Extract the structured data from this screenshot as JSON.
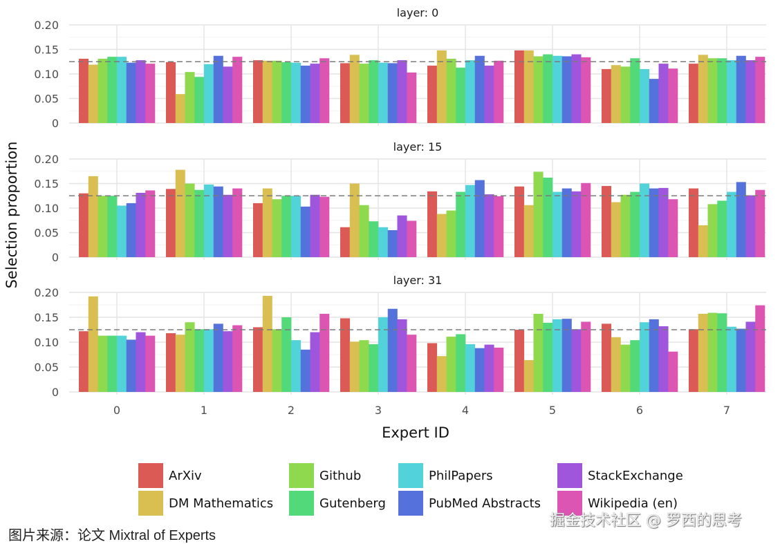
{
  "chart_data": {
    "type": "bar",
    "layout": "faceted",
    "xlabel": "Expert ID",
    "ylabel": "Selection proportion",
    "categories": [
      "0",
      "1",
      "2",
      "3",
      "4",
      "5",
      "6",
      "7"
    ],
    "ylim": [
      0,
      0.2
    ],
    "yticks": [
      "0",
      "0.05",
      "0.10",
      "0.15",
      "0.20"
    ],
    "ytick_values": [
      0,
      0.05,
      0.1,
      0.15,
      0.2
    ],
    "reference_line": 0.125,
    "grid": true,
    "legend_position": "bottom",
    "series_names": [
      "ArXiv",
      "DM Mathematics",
      "Github",
      "Gutenberg",
      "PhilPapers",
      "PubMed Abstracts",
      "StackExchange",
      "Wikipedia (en)"
    ],
    "series_colors": [
      "#dc5a55",
      "#d9bf52",
      "#8fd94f",
      "#52d97a",
      "#52d3d9",
      "#5571dc",
      "#9f55dc",
      "#dc55b3"
    ],
    "panels": [
      {
        "title": "layer: 0",
        "series": [
          {
            "name": "ArXiv",
            "values": [
              0.131,
              0.124,
              0.128,
              0.122,
              0.117,
              0.148,
              0.11,
              0.121
            ]
          },
          {
            "name": "DM Mathematics",
            "values": [
              0.119,
              0.059,
              0.127,
              0.139,
              0.148,
              0.148,
              0.118,
              0.139
            ]
          },
          {
            "name": "Github",
            "values": [
              0.131,
              0.104,
              0.127,
              0.121,
              0.131,
              0.136,
              0.115,
              0.132
            ]
          },
          {
            "name": "Gutenberg",
            "values": [
              0.135,
              0.094,
              0.124,
              0.128,
              0.113,
              0.14,
              0.132,
              0.132
            ]
          },
          {
            "name": "PhilPapers",
            "values": [
              0.135,
              0.12,
              0.123,
              0.123,
              0.128,
              0.137,
              0.11,
              0.128
            ]
          },
          {
            "name": "PubMed Abstracts",
            "values": [
              0.123,
              0.137,
              0.117,
              0.122,
              0.137,
              0.136,
              0.09,
              0.137
            ]
          },
          {
            "name": "StackExchange",
            "values": [
              0.128,
              0.115,
              0.121,
              0.128,
              0.117,
              0.14,
              0.121,
              0.128
            ]
          },
          {
            "name": "Wikipedia (en)",
            "values": [
              0.121,
              0.135,
              0.132,
              0.103,
              0.127,
              0.134,
              0.111,
              0.135
            ]
          }
        ]
      },
      {
        "title": "layer: 15",
        "series": [
          {
            "name": "ArXiv",
            "values": [
              0.13,
              0.139,
              0.11,
              0.061,
              0.134,
              0.144,
              0.145,
              0.14
            ]
          },
          {
            "name": "DM Mathematics",
            "values": [
              0.165,
              0.178,
              0.14,
              0.15,
              0.088,
              0.106,
              0.112,
              0.065
            ]
          },
          {
            "name": "Github",
            "values": [
              0.125,
              0.15,
              0.118,
              0.106,
              0.095,
              0.174,
              0.127,
              0.108
            ]
          },
          {
            "name": "Gutenberg",
            "values": [
              0.125,
              0.137,
              0.125,
              0.073,
              0.133,
              0.162,
              0.133,
              0.115
            ]
          },
          {
            "name": "PhilPapers",
            "values": [
              0.105,
              0.148,
              0.125,
              0.061,
              0.147,
              0.133,
              0.15,
              0.133
            ]
          },
          {
            "name": "PubMed Abstracts",
            "values": [
              0.11,
              0.144,
              0.103,
              0.055,
              0.157,
              0.14,
              0.14,
              0.153
            ]
          },
          {
            "name": "StackExchange",
            "values": [
              0.131,
              0.127,
              0.127,
              0.085,
              0.128,
              0.134,
              0.141,
              0.126
            ]
          },
          {
            "name": "Wikipedia (en)",
            "values": [
              0.136,
              0.14,
              0.123,
              0.074,
              0.124,
              0.151,
              0.118,
              0.137
            ]
          }
        ]
      },
      {
        "title": "layer: 31",
        "series": [
          {
            "name": "ArXiv",
            "values": [
              0.122,
              0.118,
              0.13,
              0.148,
              0.098,
              0.125,
              0.137,
              0.126
            ]
          },
          {
            "name": "DM Mathematics",
            "values": [
              0.192,
              0.115,
              0.193,
              0.101,
              0.072,
              0.064,
              0.11,
              0.157
            ]
          },
          {
            "name": "Github",
            "values": [
              0.113,
              0.14,
              0.126,
              0.104,
              0.111,
              0.157,
              0.095,
              0.159
            ]
          },
          {
            "name": "Gutenberg",
            "values": [
              0.113,
              0.126,
              0.15,
              0.096,
              0.116,
              0.139,
              0.104,
              0.158
            ]
          },
          {
            "name": "PhilPapers",
            "values": [
              0.113,
              0.126,
              0.104,
              0.15,
              0.096,
              0.146,
              0.14,
              0.131
            ]
          },
          {
            "name": "PubMed Abstracts",
            "values": [
              0.105,
              0.137,
              0.085,
              0.167,
              0.088,
              0.147,
              0.146,
              0.127
            ]
          },
          {
            "name": "StackExchange",
            "values": [
              0.12,
              0.122,
              0.12,
              0.146,
              0.095,
              0.126,
              0.132,
              0.141
            ]
          },
          {
            "name": "Wikipedia (en)",
            "values": [
              0.113,
              0.134,
              0.157,
              0.115,
              0.089,
              0.141,
              0.081,
              0.174
            ]
          }
        ]
      }
    ]
  },
  "footer": {
    "source": "图片来源：论文 Mixtral of Experts",
    "watermark": "掘金技术社区 @ 罗西的思考"
  }
}
